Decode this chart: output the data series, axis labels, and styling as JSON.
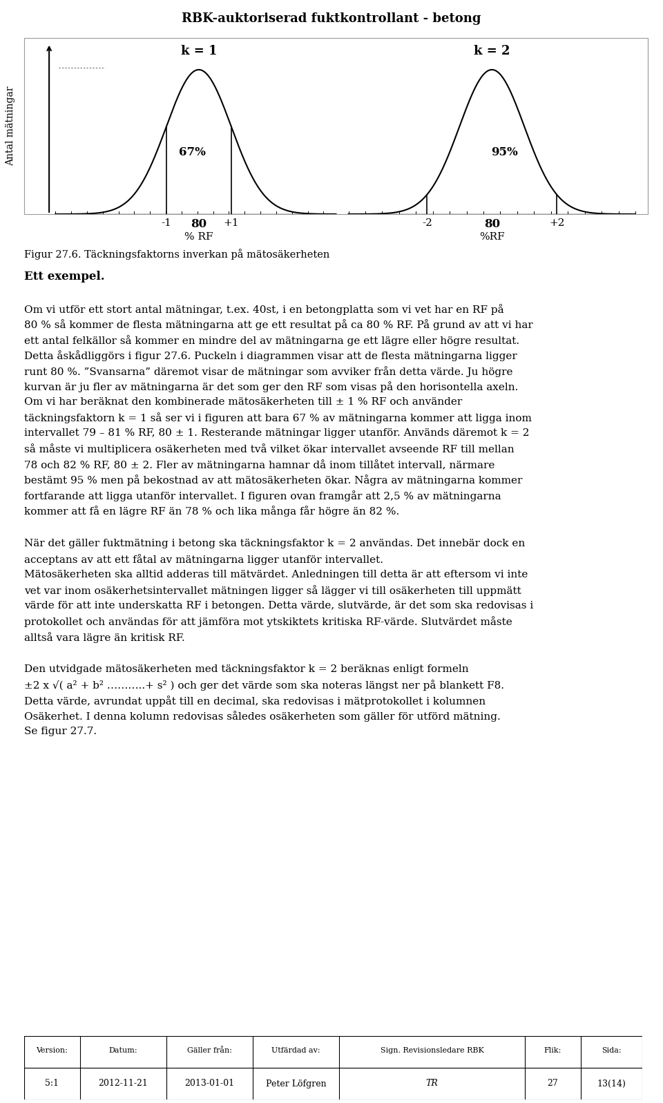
{
  "page_title": "RBK-auktoriserad fuktkontrollant - betong",
  "figure_caption": "Figur 27.6. Täckningsfaktorns inverkan på mätosäkerheten",
  "example_heading": "Ett exempel.",
  "body_text": [
    "Om vi utför ett stort antal mätningar, t.ex. 40st, i en betongplatta som vi vet har en RF på",
    "80 % så kommer de flesta mätningarna att ge ett resultat på ca 80 % RF. På grund av att vi har",
    "ett antal felkällor så kommer en mindre del av mätningarna ge ett lägre eller högre resultat.",
    "Detta åskådliggörs i figur 27.6. Puckeln i diagrammen visar att de flesta mätningarna ligger",
    "runt 80 %. ”Svansarna” däremot visar de mätningar som avviker från detta värde. Ju högre",
    "kurvan är ju fler av mätningarna är det som ger den RF som visas på den horisontella axeln.",
    "Om vi har beräknat den kombinerade mätosäkerheten till ± 1 % RF och använder",
    "täckningsfaktorn k = 1 så ser vi i figuren att bara 67 % av mätningarna kommer att ligga inom",
    "intervallet 79 – 81 % RF, 80 ± 1. Resterande mätningar ligger utanför. Används däremot k = 2",
    "så måste vi multiplicera osäkerheten med två vilket ökar intervallet avseende RF till mellan",
    "78 och 82 % RF, 80 ± 2. Fler av mätningarna hamnar då inom tillåtet intervall, närmare",
    "bestämt 95 % men på bekostnad av att mätosäkerheten ökar. Några av mätningarna kommer",
    "fortfarande att ligga utanför intervallet. I figuren ovan framgår att 2,5 % av mätningarna",
    "kommer att få en lägre RF än 78 % och lika många får högre än 82 %."
  ],
  "body_text2": [
    "När det gäller fuktmätning i betong ska täckningsfaktor k = 2 användas. Det innebär dock en",
    "acceptans av att ett fåtal av mätningarna ligger utanför intervallet.",
    "Mätosäkerheten ska alltid adderas till mätvärdet. Anledningen till detta är att eftersom vi inte",
    "vet var inom osäkerhetsintervallet mätningen ligger så lägger vi till osäkerheten till uppmätt",
    "värde för att inte underskatta RF i betongen. Detta värde, slutvärde, är det som ska redovisas i",
    "protokollet och användas för att jämföra mot ytskiktets kritiska RF-värde. Slutvärdet måste",
    "alltså vara lägre än kritisk RF."
  ],
  "body_text3": [
    "Den utvidgade mätosäkerheten med täckningsfaktor k = 2 beräknas enligt formeln",
    "±2 x √( a² + b² ………..+ s² ) och ger det värde som ska noteras längst ner på blankett F8.",
    "Detta värde, avrundat uppåt till en decimal, ska redovisas i mätprotokollet i kolumnen",
    "Osäkerhet. I denna kolumn redovisas således osäkerheten som gäller för utförd mätning.",
    "Se figur 27.7."
  ],
  "footer_headers": [
    "Version:",
    "Datum:",
    "Gäller från:",
    "Utfärdad av:",
    "Sign. Revisionsledare RBK",
    "Flik:",
    "Sida:"
  ],
  "footer_values": [
    "5:1",
    "2012-11-21",
    "2013-01-01",
    "Peter Löfgren",
    "TR",
    "27",
    "13(14)"
  ],
  "left_bell": {
    "label": "k = 1",
    "percent_label": "67%",
    "x_labels": [
      "-1",
      "80",
      "+1"
    ],
    "xlabel": "% RF"
  },
  "right_bell": {
    "label": "k = 2",
    "percent_label": "95%",
    "x_labels": [
      "-2",
      "80",
      "+2"
    ],
    "xlabel": "%RF"
  },
  "ylabel": "Antal mätningar",
  "background_color": "#ffffff",
  "text_color": "#000000"
}
